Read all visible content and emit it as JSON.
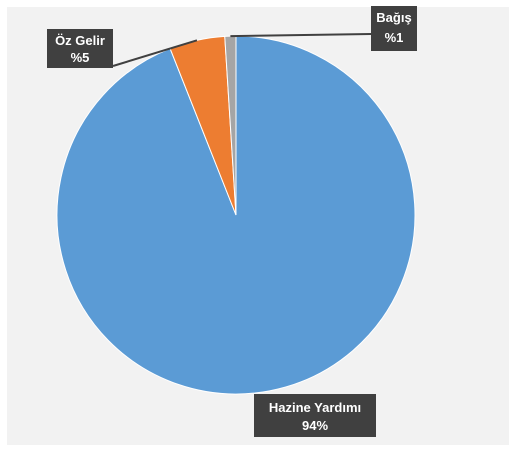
{
  "chart_data": {
    "type": "pie",
    "slices": [
      {
        "label": "Hazine Yardımı",
        "value_label": "94%",
        "value": 94,
        "color": "#5b9bd5"
      },
      {
        "label": "Öz Gelir",
        "value_label": "%5",
        "value": 5,
        "color": "#ed7d31"
      },
      {
        "label": "Bağış",
        "value_label": "%1",
        "value": 1,
        "color": "#a5a5a5"
      }
    ],
    "title": "",
    "legend": "none"
  }
}
